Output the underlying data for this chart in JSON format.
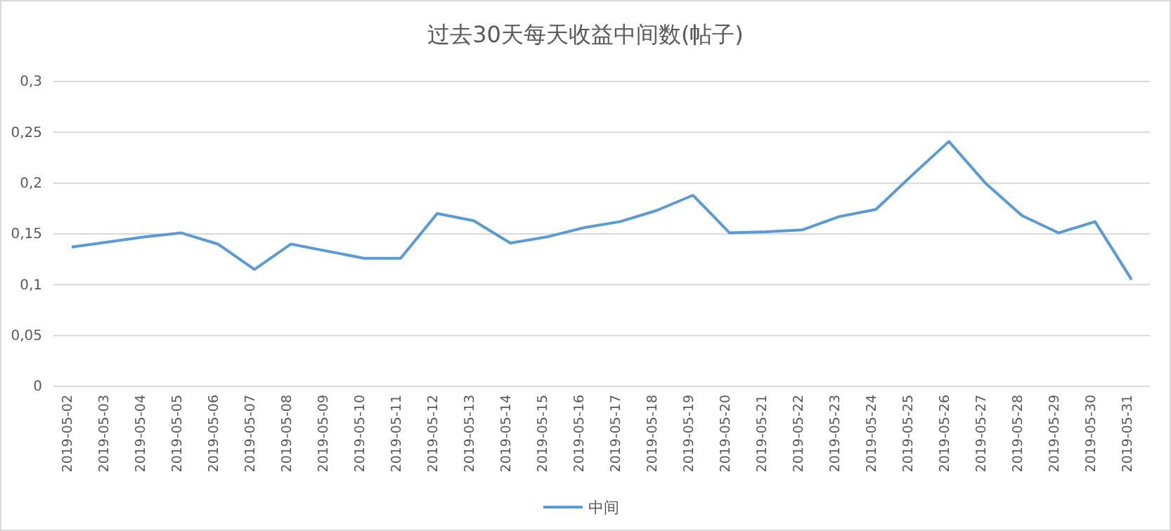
{
  "chart_data": {
    "type": "line",
    "title": "过去30天每天收益中间数(帖子)",
    "categories": [
      "2019-05-02",
      "2019-05-03",
      "2019-05-04",
      "2019-05-05",
      "2019-05-06",
      "2019-05-07",
      "2019-05-08",
      "2019-05-09",
      "2019-05-10",
      "2019-05-11",
      "2019-05-12",
      "2019-05-13",
      "2019-05-14",
      "2019-05-15",
      "2019-05-16",
      "2019-05-17",
      "2019-05-18",
      "2019-05-19",
      "2019-05-20",
      "2019-05-21",
      "2019-05-22",
      "2019-05-23",
      "2019-05-24",
      "2019-05-25",
      "2019-05-26",
      "2019-05-27",
      "2019-05-28",
      "2019-05-29",
      "2019-05-30",
      "2019-05-31"
    ],
    "series": [
      {
        "name": "中间",
        "color": "#5b9bd5",
        "values": [
          0.137,
          0.142,
          0.147,
          0.151,
          0.14,
          0.115,
          0.14,
          0.133,
          0.126,
          0.126,
          0.17,
          0.163,
          0.141,
          0.147,
          0.156,
          0.162,
          0.173,
          0.188,
          0.151,
          0.152,
          0.154,
          0.167,
          0.174,
          0.208,
          0.241,
          0.2,
          0.168,
          0.151,
          0.162,
          0.105
        ]
      }
    ],
    "ylim": [
      0,
      0.3
    ],
    "yticks": [
      0,
      {
        "value": 0.05,
        "label": "0,05"
      },
      {
        "value": 0.1,
        "label": "0,1"
      },
      {
        "value": 0.15,
        "label": "0,15"
      },
      {
        "value": 0.2,
        "label": "0,2"
      },
      {
        "value": 0.25,
        "label": "0,25"
      },
      {
        "value": 0.3,
        "label": "0,3"
      }
    ],
    "grid": "y",
    "legend": "bottom",
    "marker": "none",
    "line_style": "solid"
  }
}
